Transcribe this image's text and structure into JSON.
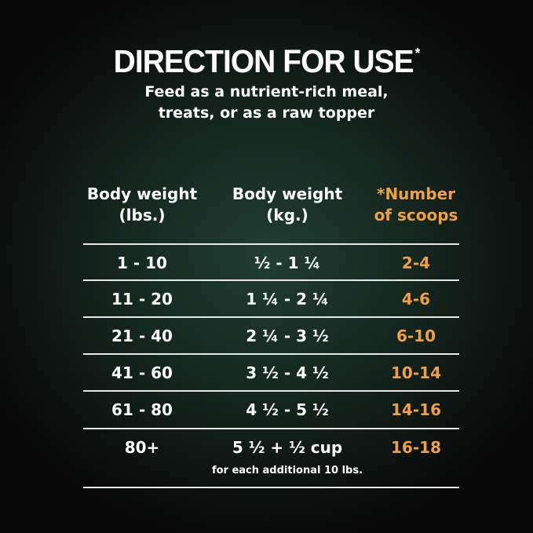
{
  "title": "DIRECTION FOR USE",
  "title_mark": "*",
  "subtitle": [
    "Feed as a nutrient-rich meal,",
    "treats, or as a raw topper"
  ],
  "headers": [
    [
      "Body weight",
      "(lbs.)"
    ],
    [
      "Body weight",
      "(kg.)"
    ],
    [
      "*Number",
      "of scoops"
    ]
  ],
  "rows": [
    [
      "1 - 10",
      "½ - 1 ¼",
      "2-4"
    ],
    [
      "11 - 20",
      "1 ¼ - 2 ¼",
      "4-6"
    ],
    [
      "21 - 40",
      "2 ¼ - 3 ½",
      "6-10"
    ],
    [
      "41 - 60",
      "3 ½ - 4 ½",
      "10-14"
    ],
    [
      "61 - 80",
      "4 ½ - 5 ½",
      "14-16"
    ],
    [
      "80+",
      "5 ½ + ½ cup",
      "16-18"
    ]
  ],
  "last_row_note": "for each additional 10 lbs.",
  "colors": {
    "accent": "#f0a040",
    "background": "#1a3029",
    "text": "#ffffff"
  }
}
